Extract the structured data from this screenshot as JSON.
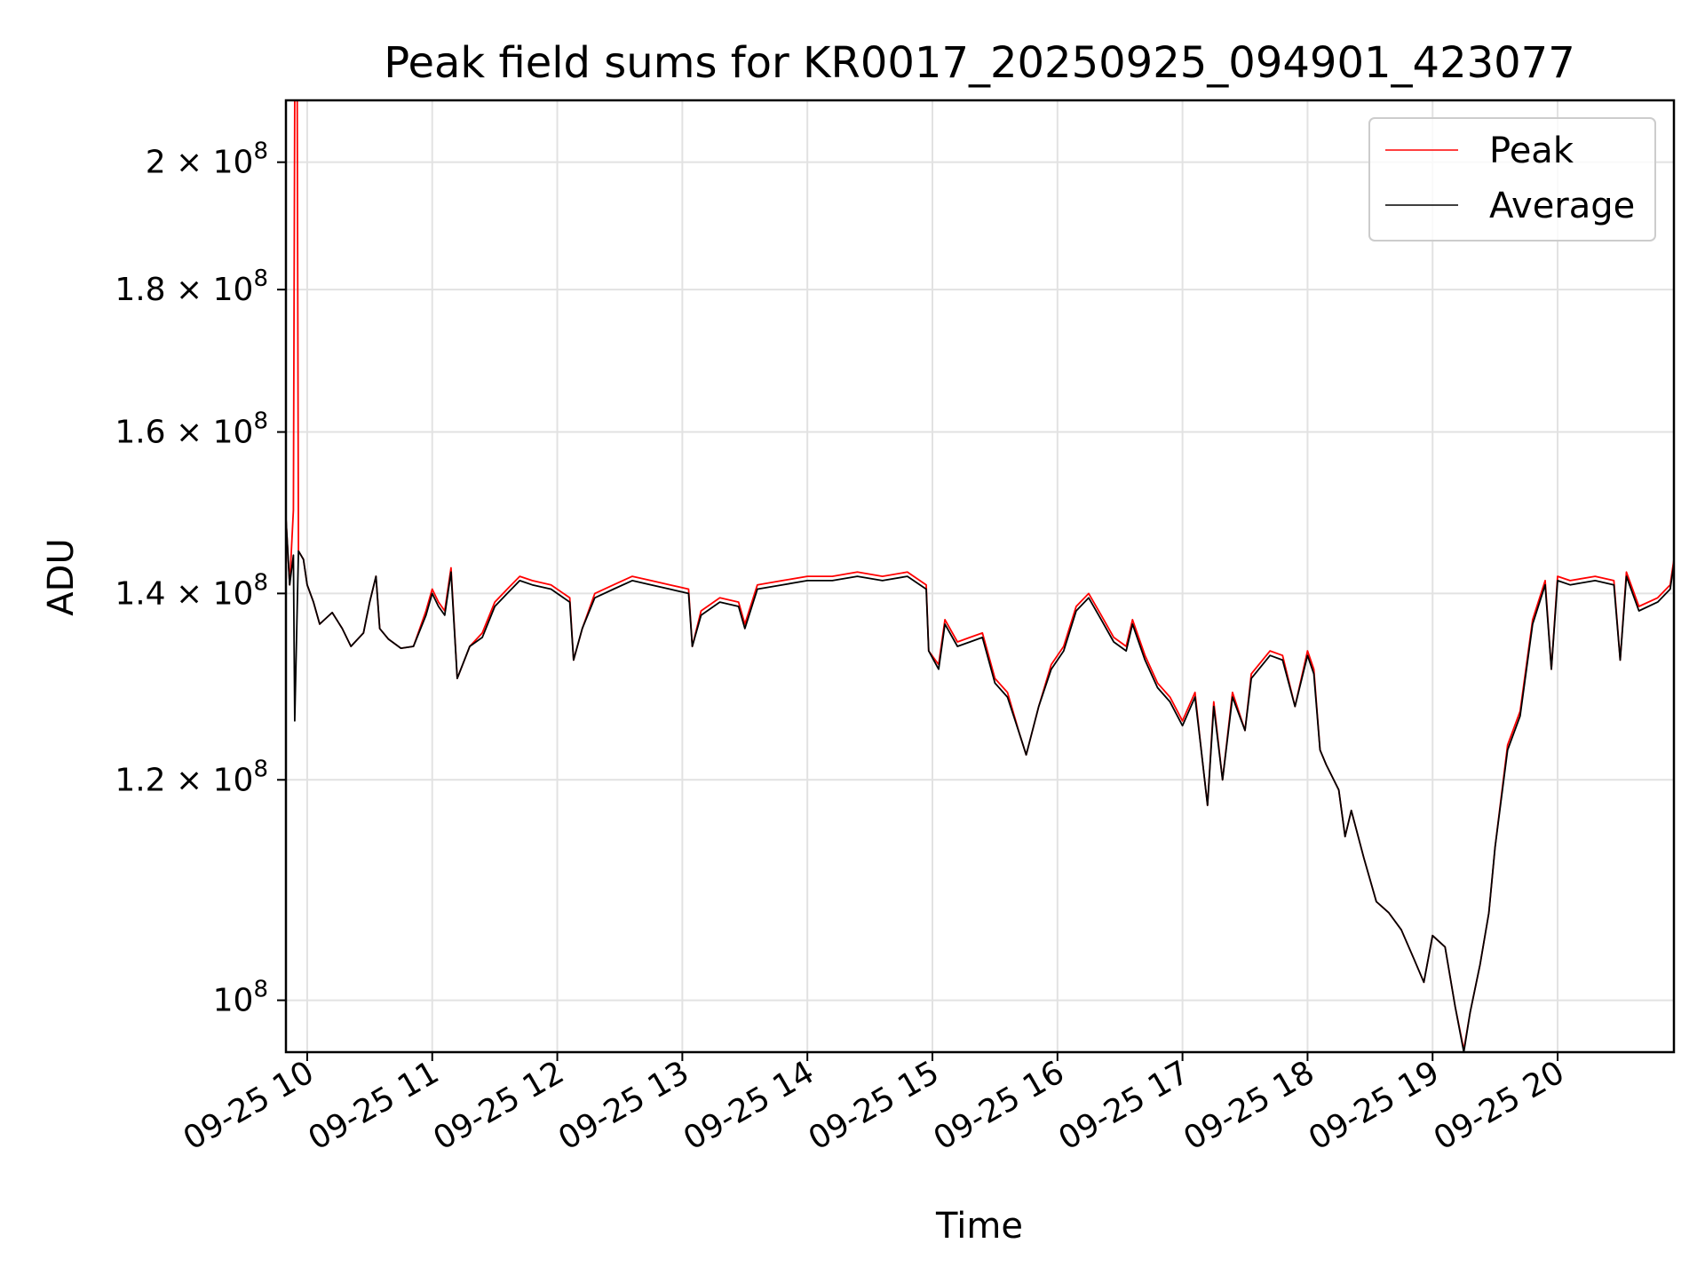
{
  "chart_data": {
    "type": "line",
    "title": "Peak field sums for KR0017_20250925_094901_423077",
    "xlabel": "Time",
    "ylabel": "ADU",
    "x_unit": "hours (2025-09-25)",
    "xlim": [
      9.83,
      20.93
    ],
    "ylim": [
      95800000,
      210500000
    ],
    "yscale": "log",
    "grid": true,
    "legend_position": "top-right",
    "x_ticks": [
      {
        "value": 10,
        "label": "09-25 10"
      },
      {
        "value": 11,
        "label": "09-25 11"
      },
      {
        "value": 12,
        "label": "09-25 12"
      },
      {
        "value": 13,
        "label": "09-25 13"
      },
      {
        "value": 14,
        "label": "09-25 14"
      },
      {
        "value": 15,
        "label": "09-25 15"
      },
      {
        "value": 16,
        "label": "09-25 16"
      },
      {
        "value": 17,
        "label": "09-25 17"
      },
      {
        "value": 18,
        "label": "09-25 18"
      },
      {
        "value": 19,
        "label": "09-25 19"
      },
      {
        "value": 20,
        "label": "09-25 20"
      }
    ],
    "y_ticks": [
      {
        "value": 100000000,
        "mantissa": "",
        "exponent": "8"
      },
      {
        "value": 120000000,
        "mantissa": "1.2",
        "exponent": "8"
      },
      {
        "value": 140000000,
        "mantissa": "1.4",
        "exponent": "8"
      },
      {
        "value": 160000000,
        "mantissa": "1.6",
        "exponent": "8"
      },
      {
        "value": 180000000,
        "mantissa": "1.8",
        "exponent": "8"
      },
      {
        "value": 200000000,
        "mantissa": "2",
        "exponent": "8"
      }
    ],
    "series": [
      {
        "name": "Peak",
        "color": "#ff0000",
        "points": [
          [
            9.83,
            149000000
          ],
          [
            9.86,
            141000000
          ],
          [
            9.89,
            150000000
          ],
          [
            9.9,
            210500000
          ],
          [
            9.92,
            210500000
          ],
          [
            9.93,
            145000000
          ],
          [
            9.97,
            144000000
          ],
          [
            10.0,
            141000000
          ],
          [
            10.05,
            139000000
          ],
          [
            10.1,
            136500000
          ],
          [
            10.2,
            137800000
          ],
          [
            10.28,
            136000000
          ],
          [
            10.35,
            134000000
          ],
          [
            10.45,
            135500000
          ],
          [
            10.5,
            139000000
          ],
          [
            10.55,
            142000000
          ],
          [
            10.58,
            136000000
          ],
          [
            10.65,
            134800000
          ],
          [
            10.75,
            133800000
          ],
          [
            10.85,
            134000000
          ],
          [
            10.95,
            138000000
          ],
          [
            11.0,
            140500000
          ],
          [
            11.05,
            139000000
          ],
          [
            11.1,
            138000000
          ],
          [
            11.15,
            143000000
          ],
          [
            11.2,
            130500000
          ],
          [
            11.3,
            134000000
          ],
          [
            11.4,
            135500000
          ],
          [
            11.5,
            139000000
          ],
          [
            11.6,
            140500000
          ],
          [
            11.7,
            142000000
          ],
          [
            11.8,
            141500000
          ],
          [
            11.95,
            141000000
          ],
          [
            12.1,
            139500000
          ],
          [
            12.13,
            132500000
          ],
          [
            12.2,
            136000000
          ],
          [
            12.3,
            140000000
          ],
          [
            12.45,
            141000000
          ],
          [
            12.6,
            142000000
          ],
          [
            12.75,
            141500000
          ],
          [
            12.9,
            141000000
          ],
          [
            13.05,
            140500000
          ],
          [
            13.08,
            134000000
          ],
          [
            13.15,
            138000000
          ],
          [
            13.3,
            139500000
          ],
          [
            13.45,
            139000000
          ],
          [
            13.5,
            136500000
          ],
          [
            13.6,
            141000000
          ],
          [
            13.8,
            141500000
          ],
          [
            14.0,
            142000000
          ],
          [
            14.2,
            142000000
          ],
          [
            14.4,
            142500000
          ],
          [
            14.6,
            142000000
          ],
          [
            14.8,
            142500000
          ],
          [
            14.95,
            141000000
          ],
          [
            14.97,
            133500000
          ],
          [
            15.05,
            132000000
          ],
          [
            15.1,
            137000000
          ],
          [
            15.2,
            134500000
          ],
          [
            15.3,
            135000000
          ],
          [
            15.4,
            135500000
          ],
          [
            15.5,
            130500000
          ],
          [
            15.6,
            129000000
          ],
          [
            15.7,
            124500000
          ],
          [
            15.75,
            122500000
          ],
          [
            15.85,
            127500000
          ],
          [
            15.95,
            132000000
          ],
          [
            16.05,
            134000000
          ],
          [
            16.15,
            138500000
          ],
          [
            16.25,
            140000000
          ],
          [
            16.35,
            137500000
          ],
          [
            16.45,
            135000000
          ],
          [
            16.55,
            134000000
          ],
          [
            16.6,
            137000000
          ],
          [
            16.7,
            133000000
          ],
          [
            16.8,
            130000000
          ],
          [
            16.9,
            128500000
          ],
          [
            17.0,
            126000000
          ],
          [
            17.1,
            129000000
          ],
          [
            17.15,
            123000000
          ],
          [
            17.2,
            117500000
          ],
          [
            17.25,
            128000000
          ],
          [
            17.32,
            120000000
          ],
          [
            17.4,
            129000000
          ],
          [
            17.5,
            125000000
          ],
          [
            17.55,
            131000000
          ],
          [
            17.7,
            133500000
          ],
          [
            17.8,
            133000000
          ],
          [
            17.9,
            127500000
          ],
          [
            18.0,
            133500000
          ],
          [
            18.05,
            131500000
          ],
          [
            18.1,
            123000000
          ],
          [
            18.15,
            121500000
          ],
          [
            18.25,
            119000000
          ],
          [
            18.3,
            114500000
          ],
          [
            18.35,
            117000000
          ],
          [
            18.45,
            112500000
          ],
          [
            18.55,
            108500000
          ],
          [
            18.65,
            107500000
          ],
          [
            18.75,
            106000000
          ],
          [
            18.85,
            103500000
          ],
          [
            18.93,
            101500000
          ],
          [
            19.0,
            105500000
          ],
          [
            19.1,
            104500000
          ],
          [
            19.18,
            99500000
          ],
          [
            19.25,
            96000000
          ],
          [
            19.3,
            99000000
          ],
          [
            19.38,
            103000000
          ],
          [
            19.45,
            107500000
          ],
          [
            19.5,
            113500000
          ],
          [
            19.6,
            123500000
          ],
          [
            19.7,
            127000000
          ],
          [
            19.8,
            137000000
          ],
          [
            19.9,
            141500000
          ],
          [
            19.95,
            131500000
          ],
          [
            20.0,
            142000000
          ],
          [
            20.1,
            141500000
          ],
          [
            20.3,
            142000000
          ],
          [
            20.45,
            141500000
          ],
          [
            20.5,
            132500000
          ],
          [
            20.55,
            142500000
          ],
          [
            20.65,
            138500000
          ],
          [
            20.8,
            139500000
          ],
          [
            20.9,
            141000000
          ],
          [
            20.93,
            144000000
          ]
        ]
      },
      {
        "name": "Average",
        "color": "#000000",
        "points": [
          [
            9.83,
            149000000
          ],
          [
            9.86,
            141000000
          ],
          [
            9.89,
            144500000
          ],
          [
            9.9,
            126000000
          ],
          [
            9.93,
            145000000
          ],
          [
            9.97,
            144000000
          ],
          [
            10.0,
            141000000
          ],
          [
            10.05,
            139000000
          ],
          [
            10.1,
            136500000
          ],
          [
            10.2,
            137800000
          ],
          [
            10.28,
            136000000
          ],
          [
            10.35,
            134000000
          ],
          [
            10.45,
            135500000
          ],
          [
            10.5,
            139000000
          ],
          [
            10.55,
            142000000
          ],
          [
            10.58,
            136000000
          ],
          [
            10.65,
            134800000
          ],
          [
            10.75,
            133800000
          ],
          [
            10.85,
            134000000
          ],
          [
            10.95,
            137500000
          ],
          [
            11.0,
            140000000
          ],
          [
            11.05,
            138500000
          ],
          [
            11.1,
            137500000
          ],
          [
            11.15,
            142500000
          ],
          [
            11.2,
            130500000
          ],
          [
            11.3,
            134000000
          ],
          [
            11.4,
            135000000
          ],
          [
            11.5,
            138500000
          ],
          [
            11.6,
            140000000
          ],
          [
            11.7,
            141500000
          ],
          [
            11.8,
            141000000
          ],
          [
            11.95,
            140500000
          ],
          [
            12.1,
            139000000
          ],
          [
            12.13,
            132500000
          ],
          [
            12.2,
            136000000
          ],
          [
            12.3,
            139500000
          ],
          [
            12.45,
            140500000
          ],
          [
            12.6,
            141500000
          ],
          [
            12.75,
            141000000
          ],
          [
            12.9,
            140500000
          ],
          [
            13.05,
            140000000
          ],
          [
            13.08,
            134000000
          ],
          [
            13.15,
            137500000
          ],
          [
            13.3,
            139000000
          ],
          [
            13.45,
            138500000
          ],
          [
            13.5,
            136000000
          ],
          [
            13.6,
            140500000
          ],
          [
            13.8,
            141000000
          ],
          [
            14.0,
            141500000
          ],
          [
            14.2,
            141500000
          ],
          [
            14.4,
            142000000
          ],
          [
            14.6,
            141500000
          ],
          [
            14.8,
            142000000
          ],
          [
            14.95,
            140500000
          ],
          [
            14.97,
            133500000
          ],
          [
            15.05,
            131500000
          ],
          [
            15.1,
            136500000
          ],
          [
            15.2,
            134000000
          ],
          [
            15.3,
            134500000
          ],
          [
            15.4,
            135000000
          ],
          [
            15.5,
            130000000
          ],
          [
            15.6,
            128500000
          ],
          [
            15.7,
            124500000
          ],
          [
            15.75,
            122500000
          ],
          [
            15.85,
            127500000
          ],
          [
            15.95,
            131500000
          ],
          [
            16.05,
            133500000
          ],
          [
            16.15,
            138000000
          ],
          [
            16.25,
            139500000
          ],
          [
            16.35,
            137000000
          ],
          [
            16.45,
            134500000
          ],
          [
            16.55,
            133500000
          ],
          [
            16.6,
            136500000
          ],
          [
            16.7,
            132500000
          ],
          [
            16.8,
            129500000
          ],
          [
            16.9,
            128000000
          ],
          [
            17.0,
            125500000
          ],
          [
            17.1,
            128500000
          ],
          [
            17.15,
            123000000
          ],
          [
            17.2,
            117500000
          ],
          [
            17.25,
            127500000
          ],
          [
            17.32,
            120000000
          ],
          [
            17.4,
            128500000
          ],
          [
            17.5,
            125000000
          ],
          [
            17.55,
            130500000
          ],
          [
            17.7,
            133000000
          ],
          [
            17.8,
            132500000
          ],
          [
            17.9,
            127500000
          ],
          [
            18.0,
            133000000
          ],
          [
            18.05,
            131000000
          ],
          [
            18.1,
            123000000
          ],
          [
            18.15,
            121500000
          ],
          [
            18.25,
            119000000
          ],
          [
            18.3,
            114500000
          ],
          [
            18.35,
            117000000
          ],
          [
            18.45,
            112500000
          ],
          [
            18.55,
            108500000
          ],
          [
            18.65,
            107500000
          ],
          [
            18.75,
            106000000
          ],
          [
            18.85,
            103500000
          ],
          [
            18.93,
            101500000
          ],
          [
            19.0,
            105500000
          ],
          [
            19.1,
            104500000
          ],
          [
            19.18,
            99500000
          ],
          [
            19.25,
            95800000
          ],
          [
            19.3,
            99000000
          ],
          [
            19.38,
            103000000
          ],
          [
            19.45,
            107500000
          ],
          [
            19.5,
            113500000
          ],
          [
            19.6,
            123000000
          ],
          [
            19.7,
            126500000
          ],
          [
            19.8,
            136500000
          ],
          [
            19.9,
            141000000
          ],
          [
            19.95,
            131500000
          ],
          [
            20.0,
            141500000
          ],
          [
            20.1,
            141000000
          ],
          [
            20.3,
            141500000
          ],
          [
            20.45,
            141000000
          ],
          [
            20.5,
            132500000
          ],
          [
            20.55,
            142000000
          ],
          [
            20.65,
            138000000
          ],
          [
            20.8,
            139000000
          ],
          [
            20.9,
            140500000
          ],
          [
            20.93,
            143500000
          ]
        ]
      }
    ]
  }
}
